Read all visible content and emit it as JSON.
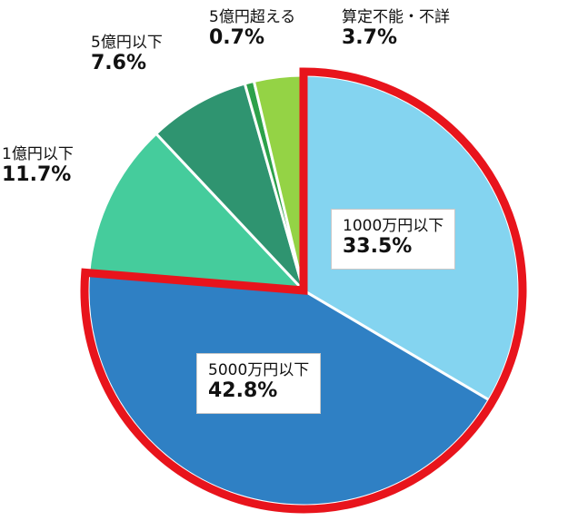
{
  "chart_data": {
    "type": "pie",
    "slices": [
      {
        "label": "1000万円以下",
        "value": 33.5,
        "value_text": "33.5%",
        "color": "#84d4f0",
        "highlighted": true
      },
      {
        "label": "5000万円以下",
        "value": 42.8,
        "value_text": "42.8%",
        "color": "#2f80c4",
        "highlighted": true
      },
      {
        "label": "1億円以下",
        "value": 11.7,
        "value_text": "11.7%",
        "color": "#45cc9c",
        "highlighted": false
      },
      {
        "label": "5億円以下",
        "value": 7.6,
        "value_text": "7.6%",
        "color": "#2f9470",
        "highlighted": false
      },
      {
        "label": "5億円超える",
        "value": 0.7,
        "value_text": "0.7%",
        "color": "#2da14a",
        "highlighted": false
      },
      {
        "label": "算定不能・不詳",
        "value": 3.7,
        "value_text": "3.7%",
        "color": "#94d345",
        "highlighted": false
      }
    ],
    "highlight_color": "#e8141c",
    "start_direction": "top, clockwise"
  }
}
